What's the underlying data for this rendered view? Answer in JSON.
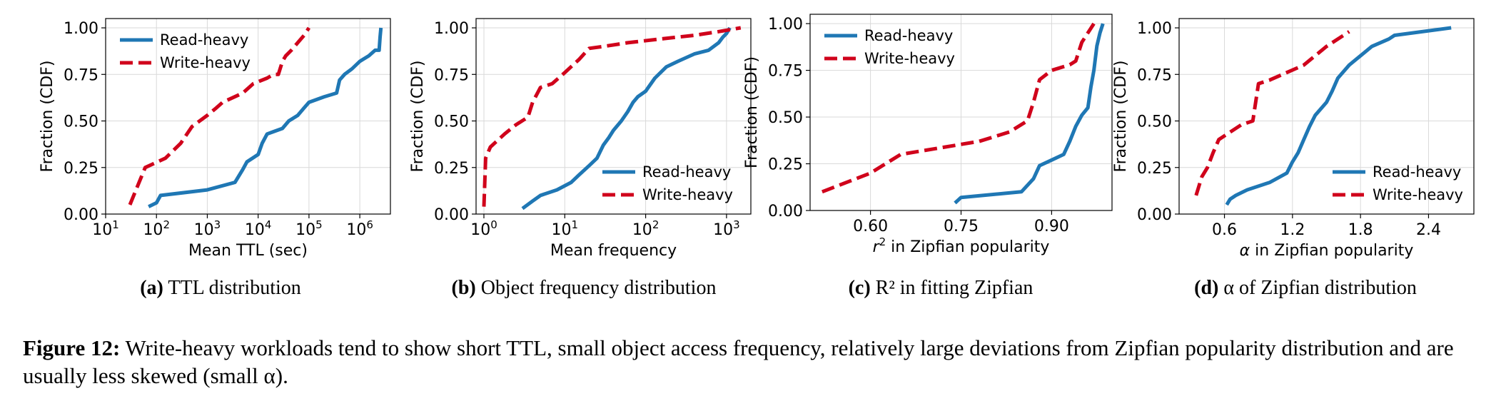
{
  "chart_data": [
    {
      "type": "line",
      "xlabel": "Mean TTL (sec)",
      "ylabel": "Fraction (CDF)",
      "xscale": "log",
      "xlim": [
        10,
        4000000
      ],
      "ylim": [
        0,
        1.05
      ],
      "xticks": [
        10,
        100,
        1000,
        10000,
        100000,
        1000000
      ],
      "xtick_labels": [
        "10^1",
        "10^2",
        "10^3",
        "10^4",
        "10^5",
        "10^6"
      ],
      "yticks": [
        0,
        0.25,
        0.5,
        0.75,
        1.0
      ],
      "ytick_labels": [
        "0.00",
        "0.25",
        "0.50",
        "0.75",
        "1.00"
      ],
      "grid": true,
      "legend_position": "top-left",
      "series": [
        {
          "name": "Read-heavy",
          "color": "#1f77b4",
          "dash": "solid",
          "x": [
            70,
            100,
            120,
            1000,
            3500,
            5000,
            6000,
            10000,
            12000,
            15000,
            30000,
            40000,
            60000,
            80000,
            100000,
            200000,
            350000,
            400000,
            500000,
            700000,
            1000000,
            1500000,
            2000000,
            2400000,
            2500000,
            2600000
          ],
          "y": [
            0.04,
            0.06,
            0.1,
            0.13,
            0.17,
            0.24,
            0.28,
            0.32,
            0.38,
            0.43,
            0.46,
            0.5,
            0.53,
            0.57,
            0.6,
            0.63,
            0.65,
            0.72,
            0.75,
            0.78,
            0.82,
            0.85,
            0.88,
            0.88,
            0.95,
            1.0
          ]
        },
        {
          "name": "Write-heavy",
          "color": "#d0021b",
          "dash": "dashed",
          "x": [
            30,
            60,
            150,
            300,
            500,
            1000,
            1500,
            2000,
            5000,
            8000,
            15000,
            20000,
            25000,
            30000,
            35000,
            45000,
            60000,
            80000,
            100000
          ],
          "y": [
            0.05,
            0.25,
            0.3,
            0.38,
            0.47,
            0.53,
            0.57,
            0.6,
            0.65,
            0.7,
            0.73,
            0.75,
            0.75,
            0.82,
            0.85,
            0.88,
            0.92,
            0.96,
            1.0
          ]
        }
      ]
    },
    {
      "type": "line",
      "xlabel": "Mean frequency",
      "ylabel": "Fraction (CDF)",
      "xscale": "log",
      "xlim": [
        0.8,
        2000
      ],
      "ylim": [
        0,
        1.05
      ],
      "xticks": [
        1,
        10,
        100,
        1000
      ],
      "xtick_labels": [
        "10^0",
        "10^1",
        "10^2",
        "10^3"
      ],
      "yticks": [
        0,
        0.25,
        0.5,
        0.75,
        1.0
      ],
      "ytick_labels": [
        "0.00",
        "0.25",
        "0.50",
        "0.75",
        "1.00"
      ],
      "grid": true,
      "legend_position": "bottom-right",
      "series": [
        {
          "name": "Read-heavy",
          "color": "#1f77b4",
          "dash": "solid",
          "x": [
            3,
            4,
            5,
            8,
            12,
            15,
            20,
            25,
            30,
            35,
            40,
            50,
            60,
            70,
            80,
            100,
            130,
            180,
            250,
            400,
            600,
            800,
            900,
            1000,
            1100
          ],
          "y": [
            0.03,
            0.07,
            0.1,
            0.13,
            0.17,
            0.21,
            0.26,
            0.3,
            0.37,
            0.41,
            0.45,
            0.5,
            0.55,
            0.6,
            0.63,
            0.66,
            0.73,
            0.79,
            0.82,
            0.86,
            0.88,
            0.92,
            0.95,
            0.97,
            1.0
          ]
        },
        {
          "name": "Write-heavy",
          "color": "#d0021b",
          "dash": "dashed",
          "x": [
            1.0,
            1.05,
            1.2,
            1.8,
            2.5,
            3.5,
            4,
            5,
            7,
            10,
            15,
            20,
            30,
            60,
            150,
            400,
            800,
            1500
          ],
          "y": [
            0.04,
            0.3,
            0.36,
            0.43,
            0.48,
            0.52,
            0.6,
            0.68,
            0.7,
            0.76,
            0.83,
            0.89,
            0.9,
            0.92,
            0.94,
            0.96,
            0.98,
            1.0
          ]
        }
      ]
    },
    {
      "type": "line",
      "xlabel": "r^2 in Zipfian popularity",
      "ylabel": "Fraction (CDF)",
      "xlim": [
        0.5,
        1.0
      ],
      "ylim": [
        0,
        1.05
      ],
      "xticks": [
        0.6,
        0.75,
        0.9
      ],
      "xtick_labels": [
        "0.60",
        "0.75",
        "0.90"
      ],
      "yticks": [
        0,
        0.25,
        0.5,
        0.75,
        1.0
      ],
      "ytick_labels": [
        "0.00",
        "0.25",
        "0.50",
        "0.75",
        "1.00"
      ],
      "grid": true,
      "legend_position": "top-left",
      "series": [
        {
          "name": "Read-heavy",
          "color": "#1f77b4",
          "dash": "solid",
          "x": [
            0.74,
            0.75,
            0.85,
            0.87,
            0.88,
            0.9,
            0.92,
            0.93,
            0.94,
            0.95,
            0.96,
            0.965,
            0.97,
            0.975,
            0.98,
            0.985
          ],
          "y": [
            0.04,
            0.07,
            0.1,
            0.17,
            0.24,
            0.27,
            0.3,
            0.37,
            0.45,
            0.51,
            0.55,
            0.66,
            0.75,
            0.88,
            0.95,
            1.0
          ]
        },
        {
          "name": "Write-heavy",
          "color": "#d0021b",
          "dash": "dashed",
          "x": [
            0.52,
            0.6,
            0.65,
            0.78,
            0.83,
            0.86,
            0.87,
            0.88,
            0.9,
            0.93,
            0.94,
            0.95,
            0.97
          ],
          "y": [
            0.1,
            0.2,
            0.3,
            0.37,
            0.42,
            0.48,
            0.58,
            0.7,
            0.75,
            0.78,
            0.8,
            0.9,
            1.0
          ]
        }
      ]
    },
    {
      "type": "line",
      "xlabel": "α in Zipfian popularity",
      "ylabel": "Fraction (CDF)",
      "xlim": [
        0.2,
        2.8
      ],
      "ylim": [
        0,
        1.05
      ],
      "xticks": [
        0.6,
        1.2,
        1.8,
        2.4
      ],
      "xtick_labels": [
        "0.6",
        "1.2",
        "1.8",
        "2.4"
      ],
      "yticks": [
        0,
        0.25,
        0.5,
        0.75,
        1.0
      ],
      "ytick_labels": [
        "0.00",
        "0.25",
        "0.50",
        "0.75",
        "1.00"
      ],
      "grid": true,
      "legend_position": "bottom-right",
      "series": [
        {
          "name": "Read-heavy",
          "color": "#1f77b4",
          "dash": "solid",
          "x": [
            0.62,
            0.65,
            0.7,
            0.8,
            1.0,
            1.15,
            1.2,
            1.25,
            1.3,
            1.35,
            1.4,
            1.5,
            1.55,
            1.6,
            1.7,
            1.9,
            2.05,
            2.1,
            2.6
          ],
          "y": [
            0.05,
            0.08,
            0.1,
            0.13,
            0.17,
            0.22,
            0.28,
            0.33,
            0.4,
            0.47,
            0.53,
            0.6,
            0.66,
            0.73,
            0.8,
            0.9,
            0.94,
            0.96,
            1.0
          ]
        },
        {
          "name": "Write-heavy",
          "color": "#d0021b",
          "dash": "dashed",
          "x": [
            0.35,
            0.4,
            0.45,
            0.5,
            0.55,
            0.75,
            0.85,
            0.9,
            1.0,
            1.3,
            1.5,
            1.7
          ],
          "y": [
            0.1,
            0.2,
            0.25,
            0.33,
            0.4,
            0.48,
            0.5,
            0.7,
            0.72,
            0.8,
            0.9,
            0.98
          ]
        }
      ]
    }
  ],
  "subcaptions": [
    {
      "label": "(a)",
      "text": "TTL distribution"
    },
    {
      "label": "(b)",
      "text": "Object frequency distribution"
    },
    {
      "label": "(c)",
      "text": "R² in fitting Zipfian"
    },
    {
      "label": "(d)",
      "text": "α of Zipfian distribution"
    }
  ],
  "caption": {
    "label": "Figure 12:",
    "text": "Write-heavy workloads tend to show short TTL, small object access frequency, relatively large deviations from Zipfian popularity distribution and are usually less skewed (small α)."
  }
}
